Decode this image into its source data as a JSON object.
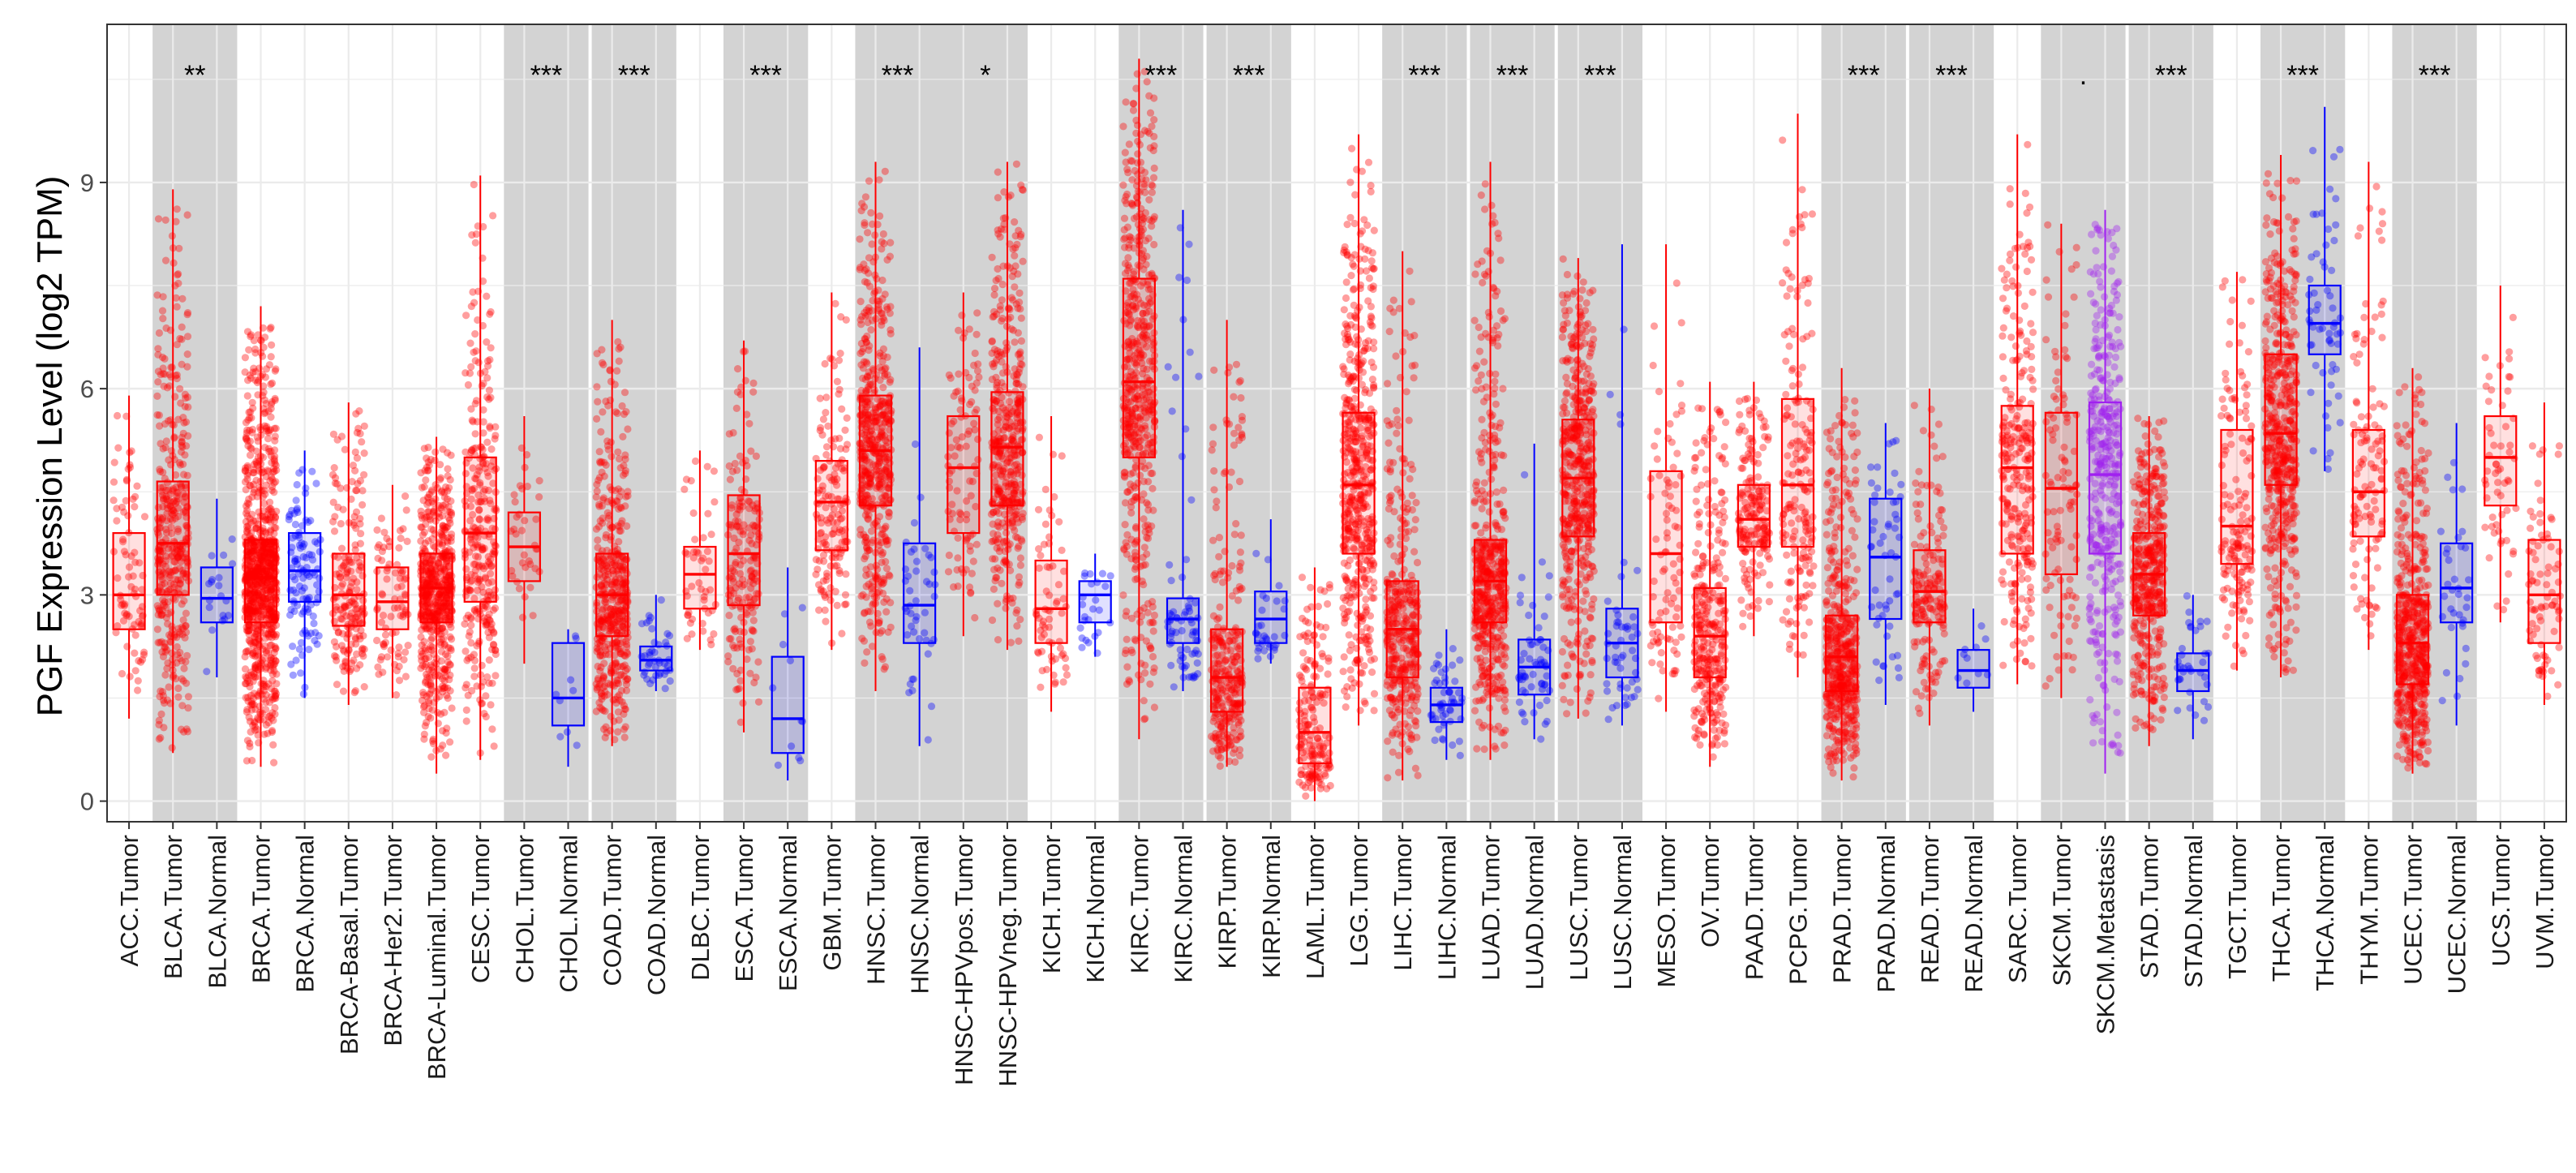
{
  "chart_data": {
    "type": "box",
    "title": "",
    "xlabel": "",
    "ylabel": "PGF Expression Level (log2 TPM)",
    "ylim": [
      -0.3,
      11.3
    ],
    "y_ticks": [
      0,
      3,
      6,
      9
    ],
    "grid": true,
    "series_colors": {
      "Tumor": "#ff0000",
      "Normal": "#0000ff",
      "Metastasis": "#a020f0"
    },
    "shade_color": "#d3d3d3",
    "categories": [
      {
        "label": "ACC.Tumor",
        "kind": "Tumor",
        "min": 1.2,
        "q1": 2.5,
        "median": 3.0,
        "q3": 3.9,
        "max": 5.9,
        "n": 80,
        "shade": false,
        "sig": ""
      },
      {
        "label": "BLCA.Tumor",
        "kind": "Tumor",
        "min": 0.7,
        "q1": 3.0,
        "median": 3.75,
        "q3": 4.65,
        "max": 8.9,
        "n": 400,
        "shade": true,
        "sig": "**"
      },
      {
        "label": "BLCA.Normal",
        "kind": "Normal",
        "min": 1.8,
        "q1": 2.6,
        "median": 2.95,
        "q3": 3.4,
        "max": 4.4,
        "n": 19,
        "shade": true,
        "sig": ""
      },
      {
        "label": "BRCA.Tumor",
        "kind": "Tumor",
        "min": 0.5,
        "q1": 2.6,
        "median": 3.25,
        "q3": 3.8,
        "max": 7.2,
        "n": 1100,
        "shade": false,
        "sig": ""
      },
      {
        "label": "BRCA.Normal",
        "kind": "Normal",
        "min": 1.5,
        "q1": 2.9,
        "median": 3.35,
        "q3": 3.9,
        "max": 5.1,
        "n": 112,
        "shade": false,
        "sig": ""
      },
      {
        "label": "BRCA-Basal.Tumor",
        "kind": "Tumor",
        "min": 1.4,
        "q1": 2.55,
        "median": 3.0,
        "q3": 3.6,
        "max": 5.8,
        "n": 190,
        "shade": false,
        "sig": ""
      },
      {
        "label": "BRCA-Her2.Tumor",
        "kind": "Tumor",
        "min": 1.5,
        "q1": 2.5,
        "median": 2.9,
        "q3": 3.4,
        "max": 4.6,
        "n": 82,
        "shade": false,
        "sig": ""
      },
      {
        "label": "BRCA-Luminal.Tumor",
        "kind": "Tumor",
        "min": 0.4,
        "q1": 2.6,
        "median": 3.1,
        "q3": 3.6,
        "max": 5.3,
        "n": 566,
        "shade": false,
        "sig": ""
      },
      {
        "label": "CESC.Tumor",
        "kind": "Tumor",
        "min": 0.6,
        "q1": 2.9,
        "median": 3.9,
        "q3": 5.0,
        "max": 9.1,
        "n": 306,
        "shade": false,
        "sig": ""
      },
      {
        "label": "CHOL.Tumor",
        "kind": "Tumor",
        "min": 2.0,
        "q1": 3.2,
        "median": 3.7,
        "q3": 4.2,
        "max": 5.6,
        "n": 36,
        "shade": true,
        "sig": "***"
      },
      {
        "label": "CHOL.Normal",
        "kind": "Normal",
        "min": 0.5,
        "q1": 1.1,
        "median": 1.5,
        "q3": 2.3,
        "max": 2.5,
        "n": 9,
        "shade": true,
        "sig": ""
      },
      {
        "label": "COAD.Tumor",
        "kind": "Tumor",
        "min": 0.8,
        "q1": 2.4,
        "median": 3.0,
        "q3": 3.6,
        "max": 7.0,
        "n": 457,
        "shade": true,
        "sig": "***"
      },
      {
        "label": "COAD.Normal",
        "kind": "Normal",
        "min": 1.6,
        "q1": 1.9,
        "median": 2.05,
        "q3": 2.25,
        "max": 3.0,
        "n": 41,
        "shade": true,
        "sig": ""
      },
      {
        "label": "DLBC.Tumor",
        "kind": "Tumor",
        "min": 2.2,
        "q1": 2.8,
        "median": 3.3,
        "q3": 3.7,
        "max": 5.1,
        "n": 48,
        "shade": false,
        "sig": ""
      },
      {
        "label": "ESCA.Tumor",
        "kind": "Tumor",
        "min": 1.0,
        "q1": 2.85,
        "median": 3.6,
        "q3": 4.45,
        "max": 6.7,
        "n": 184,
        "shade": true,
        "sig": "***"
      },
      {
        "label": "ESCA.Normal",
        "kind": "Normal",
        "min": 0.3,
        "q1": 0.7,
        "median": 1.2,
        "q3": 2.1,
        "max": 3.4,
        "n": 11,
        "shade": true,
        "sig": ""
      },
      {
        "label": "GBM.Tumor",
        "kind": "Tumor",
        "min": 2.2,
        "q1": 3.65,
        "median": 4.35,
        "q3": 4.95,
        "max": 7.4,
        "n": 153,
        "shade": false,
        "sig": ""
      },
      {
        "label": "HNSC.Tumor",
        "kind": "Tumor",
        "min": 1.6,
        "q1": 4.3,
        "median": 5.1,
        "q3": 5.9,
        "max": 9.3,
        "n": 520,
        "shade": true,
        "sig": "***"
      },
      {
        "label": "HNSC.Normal",
        "kind": "Normal",
        "min": 0.8,
        "q1": 2.3,
        "median": 2.85,
        "q3": 3.75,
        "max": 6.6,
        "n": 44,
        "shade": true,
        "sig": ""
      },
      {
        "label": "HNSC-HPVpos.Tumor",
        "kind": "Tumor",
        "min": 2.4,
        "q1": 3.9,
        "median": 4.85,
        "q3": 5.6,
        "max": 7.4,
        "n": 97,
        "shade": true,
        "sig": "*"
      },
      {
        "label": "HNSC-HPVneg.Tumor",
        "kind": "Tumor",
        "min": 2.2,
        "q1": 4.3,
        "median": 5.15,
        "q3": 5.95,
        "max": 9.3,
        "n": 421,
        "shade": true,
        "sig": ""
      },
      {
        "label": "KICH.Tumor",
        "kind": "Tumor",
        "min": 1.3,
        "q1": 2.3,
        "median": 2.8,
        "q3": 3.5,
        "max": 5.6,
        "n": 66,
        "shade": false,
        "sig": ""
      },
      {
        "label": "KICH.Normal",
        "kind": "Normal",
        "min": 2.1,
        "q1": 2.6,
        "median": 3.0,
        "q3": 3.2,
        "max": 3.6,
        "n": 25,
        "shade": false,
        "sig": ""
      },
      {
        "label": "KIRC.Tumor",
        "kind": "Tumor",
        "min": 0.9,
        "q1": 5.0,
        "median": 6.1,
        "q3": 7.6,
        "max": 10.8,
        "n": 533,
        "shade": true,
        "sig": "***"
      },
      {
        "label": "KIRC.Normal",
        "kind": "Normal",
        "min": 1.6,
        "q1": 2.3,
        "median": 2.65,
        "q3": 2.95,
        "max": 8.6,
        "n": 72,
        "shade": true,
        "sig": ""
      },
      {
        "label": "KIRP.Tumor",
        "kind": "Tumor",
        "min": 0.5,
        "q1": 1.3,
        "median": 1.8,
        "q3": 2.5,
        "max": 7.0,
        "n": 290,
        "shade": true,
        "sig": "***"
      },
      {
        "label": "KIRP.Normal",
        "kind": "Normal",
        "min": 2.0,
        "q1": 2.3,
        "median": 2.65,
        "q3": 3.05,
        "max": 4.1,
        "n": 32,
        "shade": true,
        "sig": ""
      },
      {
        "label": "LAML.Tumor",
        "kind": "Tumor",
        "min": 0.0,
        "q1": 0.55,
        "median": 1.0,
        "q3": 1.65,
        "max": 3.4,
        "n": 173,
        "shade": false,
        "sig": ""
      },
      {
        "label": "LGG.Tumor",
        "kind": "Tumor",
        "min": 1.1,
        "q1": 3.6,
        "median": 4.6,
        "q3": 5.65,
        "max": 9.7,
        "n": 516,
        "shade": false,
        "sig": ""
      },
      {
        "label": "LIHC.Tumor",
        "kind": "Tumor",
        "min": 0.3,
        "q1": 1.8,
        "median": 2.5,
        "q3": 3.2,
        "max": 8.0,
        "n": 371,
        "shade": true,
        "sig": "***"
      },
      {
        "label": "LIHC.Normal",
        "kind": "Normal",
        "min": 0.6,
        "q1": 1.15,
        "median": 1.4,
        "q3": 1.65,
        "max": 2.5,
        "n": 50,
        "shade": true,
        "sig": ""
      },
      {
        "label": "LUAD.Tumor",
        "kind": "Tumor",
        "min": 0.6,
        "q1": 2.6,
        "median": 3.2,
        "q3": 3.8,
        "max": 9.3,
        "n": 515,
        "shade": true,
        "sig": "***"
      },
      {
        "label": "LUAD.Normal",
        "kind": "Normal",
        "min": 0.9,
        "q1": 1.55,
        "median": 1.95,
        "q3": 2.35,
        "max": 5.2,
        "n": 59,
        "shade": true,
        "sig": ""
      },
      {
        "label": "LUSC.Tumor",
        "kind": "Tumor",
        "min": 1.2,
        "q1": 3.85,
        "median": 4.7,
        "q3": 5.55,
        "max": 7.9,
        "n": 501,
        "shade": true,
        "sig": "***"
      },
      {
        "label": "LUSC.Normal",
        "kind": "Normal",
        "min": 1.1,
        "q1": 1.8,
        "median": 2.3,
        "q3": 2.8,
        "max": 8.1,
        "n": 51,
        "shade": true,
        "sig": ""
      },
      {
        "label": "MESO.Tumor",
        "kind": "Tumor",
        "min": 1.3,
        "q1": 2.6,
        "median": 3.6,
        "q3": 4.8,
        "max": 8.1,
        "n": 87,
        "shade": false,
        "sig": ""
      },
      {
        "label": "OV.Tumor",
        "kind": "Tumor",
        "min": 0.5,
        "q1": 1.8,
        "median": 2.4,
        "q3": 3.1,
        "max": 6.1,
        "n": 303,
        "shade": false,
        "sig": ""
      },
      {
        "label": "PAAD.Tumor",
        "kind": "Tumor",
        "min": 2.4,
        "q1": 3.7,
        "median": 4.1,
        "q3": 4.6,
        "max": 6.1,
        "n": 179,
        "shade": false,
        "sig": ""
      },
      {
        "label": "PCPG.Tumor",
        "kind": "Tumor",
        "min": 1.8,
        "q1": 3.7,
        "median": 4.6,
        "q3": 5.85,
        "max": 10.0,
        "n": 179,
        "shade": false,
        "sig": ""
      },
      {
        "label": "PRAD.Tumor",
        "kind": "Tumor",
        "min": 0.3,
        "q1": 1.6,
        "median": 2.1,
        "q3": 2.7,
        "max": 6.3,
        "n": 497,
        "shade": true,
        "sig": "***"
      },
      {
        "label": "PRAD.Normal",
        "kind": "Normal",
        "min": 1.4,
        "q1": 2.65,
        "median": 3.55,
        "q3": 4.4,
        "max": 5.5,
        "n": 52,
        "shade": true,
        "sig": ""
      },
      {
        "label": "READ.Tumor",
        "kind": "Tumor",
        "min": 1.1,
        "q1": 2.6,
        "median": 3.05,
        "q3": 3.65,
        "max": 6.0,
        "n": 166,
        "shade": true,
        "sig": "***"
      },
      {
        "label": "READ.Normal",
        "kind": "Normal",
        "min": 1.3,
        "q1": 1.65,
        "median": 1.9,
        "q3": 2.2,
        "max": 2.8,
        "n": 10,
        "shade": true,
        "sig": ""
      },
      {
        "label": "SARC.Tumor",
        "kind": "Tumor",
        "min": 1.7,
        "q1": 3.6,
        "median": 4.85,
        "q3": 5.75,
        "max": 9.7,
        "n": 259,
        "shade": false,
        "sig": ""
      },
      {
        "label": "SKCM.Tumor",
        "kind": "Tumor",
        "min": 1.5,
        "q1": 3.3,
        "median": 4.55,
        "q3": 5.65,
        "max": 8.4,
        "n": 103,
        "shade": true,
        "sig": "."
      },
      {
        "label": "SKCM.Metastasis",
        "kind": "Metastasis",
        "min": 0.4,
        "q1": 3.6,
        "median": 4.75,
        "q3": 5.8,
        "max": 8.6,
        "n": 368,
        "shade": true,
        "sig": ""
      },
      {
        "label": "STAD.Tumor",
        "kind": "Tumor",
        "min": 0.8,
        "q1": 2.7,
        "median": 3.3,
        "q3": 3.9,
        "max": 5.6,
        "n": 415,
        "shade": true,
        "sig": "***"
      },
      {
        "label": "STAD.Normal",
        "kind": "Normal",
        "min": 0.9,
        "q1": 1.6,
        "median": 1.9,
        "q3": 2.15,
        "max": 3.0,
        "n": 35,
        "shade": true,
        "sig": ""
      },
      {
        "label": "TGCT.Tumor",
        "kind": "Tumor",
        "min": 1.9,
        "q1": 3.45,
        "median": 4.0,
        "q3": 5.4,
        "max": 7.7,
        "n": 150,
        "shade": false,
        "sig": ""
      },
      {
        "label": "THCA.Tumor",
        "kind": "Tumor",
        "min": 1.8,
        "q1": 4.6,
        "median": 5.35,
        "q3": 6.5,
        "max": 9.4,
        "n": 509,
        "shade": true,
        "sig": "***"
      },
      {
        "label": "THCA.Normal",
        "kind": "Normal",
        "min": 4.8,
        "q1": 6.5,
        "median": 6.95,
        "q3": 7.5,
        "max": 10.1,
        "n": 59,
        "shade": true,
        "sig": ""
      },
      {
        "label": "THYM.Tumor",
        "kind": "Tumor",
        "min": 2.2,
        "q1": 3.85,
        "median": 4.5,
        "q3": 5.4,
        "max": 9.3,
        "n": 120,
        "shade": false,
        "sig": ""
      },
      {
        "label": "UCEC.Tumor",
        "kind": "Tumor",
        "min": 0.4,
        "q1": 1.7,
        "median": 2.3,
        "q3": 3.0,
        "max": 6.3,
        "n": 545,
        "shade": true,
        "sig": "***"
      },
      {
        "label": "UCEC.Normal",
        "kind": "Normal",
        "min": 1.1,
        "q1": 2.6,
        "median": 3.1,
        "q3": 3.75,
        "max": 5.5,
        "n": 35,
        "shade": true,
        "sig": ""
      },
      {
        "label": "UCS.Tumor",
        "kind": "Tumor",
        "min": 2.6,
        "q1": 4.3,
        "median": 5.0,
        "q3": 5.6,
        "max": 7.5,
        "n": 57,
        "shade": false,
        "sig": ""
      },
      {
        "label": "UVM.Tumor",
        "kind": "Tumor",
        "min": 1.4,
        "q1": 2.3,
        "median": 3.0,
        "q3": 3.8,
        "max": 5.8,
        "n": 80,
        "shade": false,
        "sig": ""
      }
    ]
  }
}
